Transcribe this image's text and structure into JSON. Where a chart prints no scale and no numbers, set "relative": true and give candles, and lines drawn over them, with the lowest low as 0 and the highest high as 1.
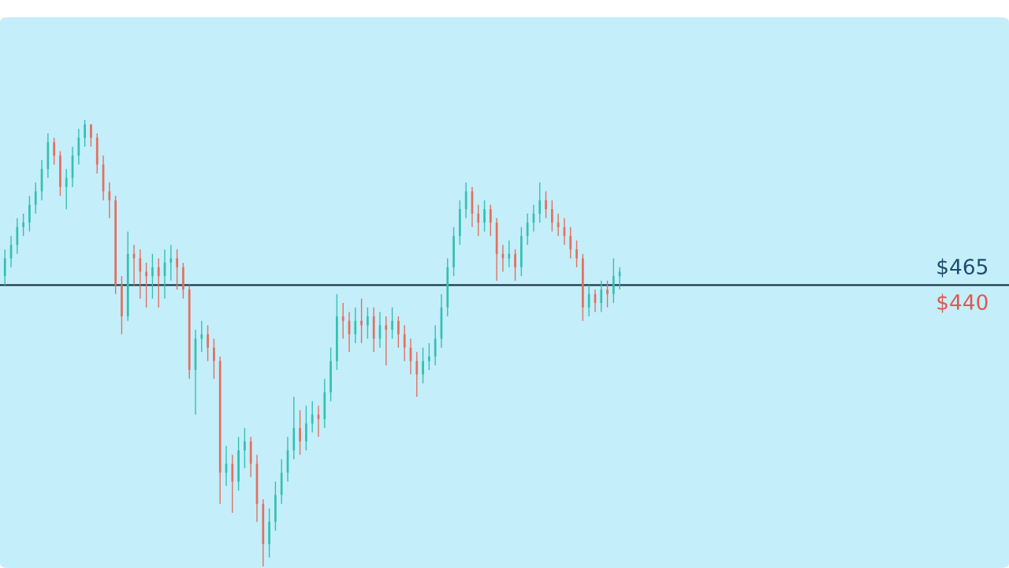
{
  "chart_data": {
    "type": "candlestick",
    "relative": true,
    "categories": [
      null,
      null,
      null,
      null,
      null,
      null,
      null,
      null,
      null,
      null,
      null,
      null,
      null,
      null,
      null,
      null,
      null,
      null,
      null,
      null,
      null,
      null,
      null,
      null,
      null,
      null,
      null,
      null,
      null,
      null,
      null,
      null,
      null,
      null,
      null,
      null,
      null,
      null,
      null,
      null,
      null,
      null,
      null,
      null,
      null,
      null,
      null,
      null,
      null,
      null,
      null,
      null,
      null,
      null,
      null,
      null,
      null,
      null,
      null,
      null,
      null,
      null,
      null,
      null,
      null,
      null,
      null,
      null,
      null,
      null,
      null,
      null,
      null,
      null,
      null,
      null,
      null,
      null,
      null,
      null,
      null,
      null,
      null,
      null,
      null,
      null,
      null,
      null,
      null,
      null,
      null,
      null,
      null,
      null,
      null,
      null,
      null,
      null,
      null,
      null,
      null
    ],
    "ohlc": [
      [
        0.65,
        0.71,
        0.63,
        0.69
      ],
      [
        0.69,
        0.74,
        0.67,
        0.72
      ],
      [
        0.72,
        0.78,
        0.7,
        0.76
      ],
      [
        0.76,
        0.79,
        0.74,
        0.77
      ],
      [
        0.77,
        0.83,
        0.75,
        0.81
      ],
      [
        0.81,
        0.86,
        0.79,
        0.84
      ],
      [
        0.84,
        0.91,
        0.82,
        0.89
      ],
      [
        0.89,
        0.97,
        0.87,
        0.95
      ],
      [
        0.95,
        0.96,
        0.9,
        0.92
      ],
      [
        0.92,
        0.93,
        0.83,
        0.85
      ],
      [
        0.85,
        0.89,
        0.8,
        0.87
      ],
      [
        0.87,
        0.94,
        0.85,
        0.92
      ],
      [
        0.92,
        0.98,
        0.9,
        0.96
      ],
      [
        0.96,
        1.0,
        0.94,
        0.99
      ],
      [
        0.99,
        0.99,
        0.94,
        0.96
      ],
      [
        0.96,
        0.97,
        0.88,
        0.9
      ],
      [
        0.9,
        0.92,
        0.82,
        0.84
      ],
      [
        0.84,
        0.86,
        0.78,
        0.82
      ],
      [
        0.82,
        0.83,
        0.61,
        0.63
      ],
      [
        0.63,
        0.65,
        0.52,
        0.56
      ],
      [
        0.56,
        0.75,
        0.55,
        0.7
      ],
      [
        0.7,
        0.72,
        0.63,
        0.69
      ],
      [
        0.69,
        0.71,
        0.6,
        0.66
      ],
      [
        0.66,
        0.68,
        0.58,
        0.65
      ],
      [
        0.65,
        0.7,
        0.6,
        0.67
      ],
      [
        0.67,
        0.69,
        0.58,
        0.65
      ],
      [
        0.65,
        0.71,
        0.6,
        0.68
      ],
      [
        0.68,
        0.72,
        0.64,
        0.69
      ],
      [
        0.69,
        0.71,
        0.62,
        0.67
      ],
      [
        0.67,
        0.68,
        0.6,
        0.62
      ],
      [
        0.62,
        0.63,
        0.42,
        0.44
      ],
      [
        0.44,
        0.53,
        0.34,
        0.51
      ],
      [
        0.51,
        0.55,
        0.48,
        0.52
      ],
      [
        0.52,
        0.54,
        0.46,
        0.49
      ],
      [
        0.49,
        0.51,
        0.42,
        0.46
      ],
      [
        0.46,
        0.47,
        0.14,
        0.21
      ],
      [
        0.21,
        0.27,
        0.18,
        0.23
      ],
      [
        0.23,
        0.25,
        0.12,
        0.19
      ],
      [
        0.19,
        0.29,
        0.17,
        0.26
      ],
      [
        0.26,
        0.31,
        0.22,
        0.28
      ],
      [
        0.28,
        0.29,
        0.2,
        0.23
      ],
      [
        0.23,
        0.25,
        0.1,
        0.14
      ],
      [
        0.14,
        0.15,
        0.0,
        0.05
      ],
      [
        0.05,
        0.13,
        0.02,
        0.1
      ],
      [
        0.1,
        0.19,
        0.08,
        0.16
      ],
      [
        0.16,
        0.24,
        0.14,
        0.21
      ],
      [
        0.21,
        0.29,
        0.19,
        0.26
      ],
      [
        0.26,
        0.38,
        0.24,
        0.31
      ],
      [
        0.31,
        0.35,
        0.25,
        0.28
      ],
      [
        0.28,
        0.36,
        0.26,
        0.32
      ],
      [
        0.32,
        0.37,
        0.3,
        0.34
      ],
      [
        0.34,
        0.36,
        0.29,
        0.33
      ],
      [
        0.33,
        0.42,
        0.31,
        0.39
      ],
      [
        0.39,
        0.49,
        0.37,
        0.46
      ],
      [
        0.46,
        0.61,
        0.44,
        0.56
      ],
      [
        0.56,
        0.59,
        0.51,
        0.55
      ],
      [
        0.55,
        0.57,
        0.48,
        0.52
      ],
      [
        0.52,
        0.58,
        0.5,
        0.55
      ],
      [
        0.55,
        0.6,
        0.5,
        0.54
      ],
      [
        0.54,
        0.58,
        0.51,
        0.56
      ],
      [
        0.56,
        0.58,
        0.48,
        0.51
      ],
      [
        0.51,
        0.57,
        0.49,
        0.54
      ],
      [
        0.54,
        0.56,
        0.45,
        0.53
      ],
      [
        0.53,
        0.58,
        0.51,
        0.55
      ],
      [
        0.55,
        0.56,
        0.49,
        0.52
      ],
      [
        0.52,
        0.54,
        0.46,
        0.49
      ],
      [
        0.49,
        0.51,
        0.43,
        0.46
      ],
      [
        0.46,
        0.48,
        0.38,
        0.43
      ],
      [
        0.43,
        0.49,
        0.41,
        0.46
      ],
      [
        0.46,
        0.5,
        0.44,
        0.47
      ],
      [
        0.47,
        0.54,
        0.45,
        0.51
      ],
      [
        0.51,
        0.61,
        0.49,
        0.58
      ],
      [
        0.58,
        0.69,
        0.56,
        0.67
      ],
      [
        0.67,
        0.76,
        0.65,
        0.74
      ],
      [
        0.74,
        0.82,
        0.72,
        0.8
      ],
      [
        0.8,
        0.86,
        0.78,
        0.84
      ],
      [
        0.84,
        0.85,
        0.76,
        0.79
      ],
      [
        0.79,
        0.81,
        0.74,
        0.77
      ],
      [
        0.77,
        0.82,
        0.75,
        0.8
      ],
      [
        0.8,
        0.81,
        0.74,
        0.77
      ],
      [
        0.77,
        0.78,
        0.64,
        0.7
      ],
      [
        0.7,
        0.72,
        0.66,
        0.69
      ],
      [
        0.69,
        0.73,
        0.67,
        0.7
      ],
      [
        0.7,
        0.71,
        0.64,
        0.67
      ],
      [
        0.67,
        0.76,
        0.65,
        0.74
      ],
      [
        0.74,
        0.79,
        0.72,
        0.77
      ],
      [
        0.77,
        0.81,
        0.75,
        0.79
      ],
      [
        0.79,
        0.86,
        0.77,
        0.82
      ],
      [
        0.82,
        0.84,
        0.78,
        0.8
      ],
      [
        0.8,
        0.82,
        0.75,
        0.77
      ],
      [
        0.77,
        0.79,
        0.74,
        0.76
      ],
      [
        0.76,
        0.78,
        0.72,
        0.74
      ],
      [
        0.74,
        0.76,
        0.69,
        0.71
      ],
      [
        0.71,
        0.73,
        0.67,
        0.69
      ],
      [
        0.69,
        0.7,
        0.55,
        0.58
      ],
      [
        0.58,
        0.63,
        0.56,
        0.61
      ],
      [
        0.61,
        0.62,
        0.57,
        0.59
      ],
      [
        0.59,
        0.64,
        0.57,
        0.62
      ],
      [
        0.62,
        0.64,
        0.58,
        0.61
      ],
      [
        0.61,
        0.69,
        0.59,
        0.65
      ],
      [
        0.65,
        0.67,
        0.62,
        0.66
      ]
    ],
    "ref_lines": [
      {
        "axis": "y",
        "value": 0.63,
        "color": "#1b3a4b"
      }
    ],
    "annotations": [
      "$465",
      "$440"
    ]
  }
}
